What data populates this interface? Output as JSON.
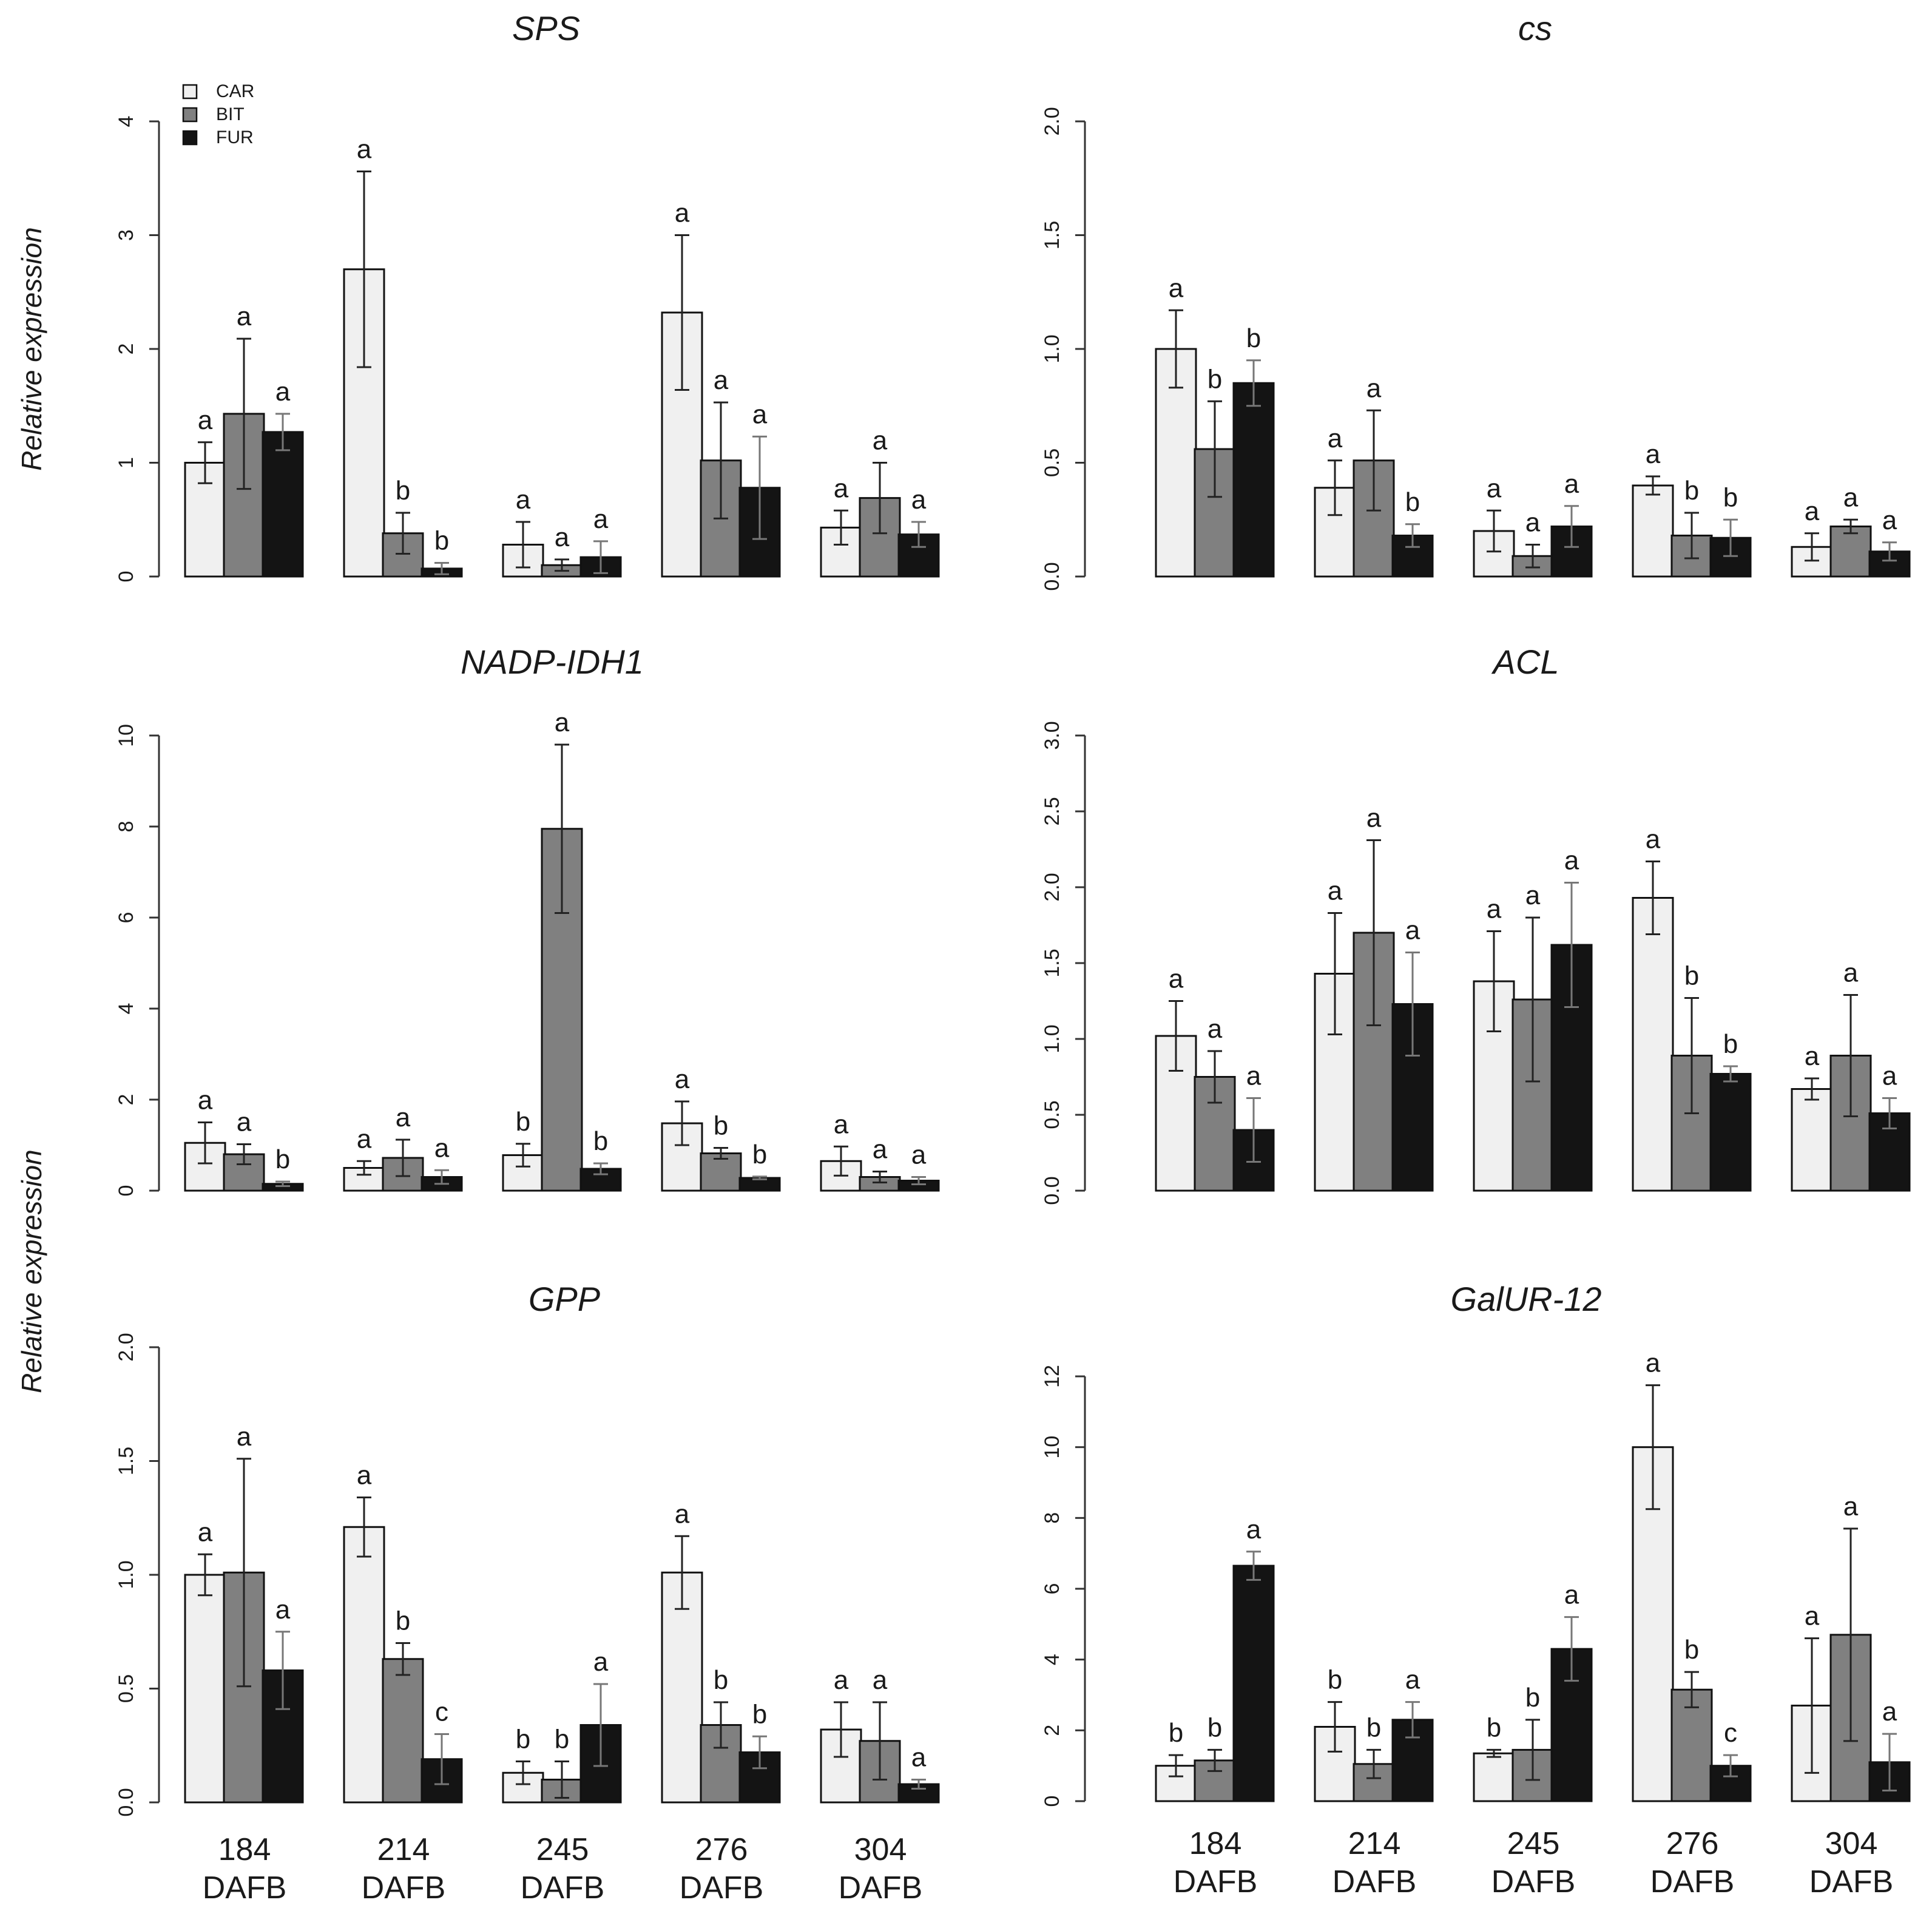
{
  "y_axis_label": "Relative expression",
  "legend": [
    {
      "label": "CAR",
      "color": "#f0f0f0"
    },
    {
      "label": "BIT",
      "color": "#808080"
    },
    {
      "label": "FUR",
      "color": "#141414"
    }
  ],
  "x_categories": [
    {
      "num": "184",
      "unit": "DAFB"
    },
    {
      "num": "214",
      "unit": "DAFB"
    },
    {
      "num": "245",
      "unit": "DAFB"
    },
    {
      "num": "276",
      "unit": "DAFB"
    },
    {
      "num": "304",
      "unit": "DAFB"
    }
  ],
  "chart_data": [
    {
      "type": "bar",
      "title": "SPS",
      "ylim": [
        0,
        4
      ],
      "yticks": [
        "0",
        "1",
        "2",
        "3",
        "4"
      ],
      "categories": [
        "184",
        "214",
        "245",
        "276",
        "304"
      ],
      "series": [
        {
          "name": "CAR",
          "values": [
            1.0,
            2.7,
            0.28,
            2.32,
            0.43
          ],
          "err": [
            0.18,
            0.86,
            0.2,
            0.68,
            0.15
          ],
          "sig": [
            "a",
            "a",
            "a",
            "a",
            "a"
          ]
        },
        {
          "name": "BIT",
          "values": [
            1.43,
            0.38,
            0.1,
            1.02,
            0.69
          ],
          "err": [
            0.66,
            0.18,
            0.05,
            0.51,
            0.31
          ],
          "sig": [
            "a",
            "b",
            "a",
            "a",
            "a"
          ]
        },
        {
          "name": "FUR",
          "values": [
            1.27,
            0.07,
            0.17,
            0.78,
            0.37
          ],
          "err": [
            0.16,
            0.05,
            0.14,
            0.45,
            0.11
          ],
          "sig": [
            "a",
            "b",
            "a",
            "a",
            "a"
          ]
        }
      ]
    },
    {
      "type": "bar",
      "title": "cs",
      "ylim": [
        0,
        2
      ],
      "yticks": [
        "0.0",
        "0.5",
        "1.0",
        "1.5",
        "2.0"
      ],
      "categories": [
        "184",
        "214",
        "245",
        "276",
        "304"
      ],
      "series": [
        {
          "name": "CAR",
          "values": [
            1.0,
            0.39,
            0.2,
            0.4,
            0.13
          ],
          "err": [
            0.17,
            0.12,
            0.09,
            0.04,
            0.06
          ],
          "sig": [
            "a",
            "a",
            "a",
            "a",
            "a"
          ]
        },
        {
          "name": "BIT",
          "values": [
            0.56,
            0.51,
            0.09,
            0.18,
            0.22
          ],
          "err": [
            0.21,
            0.22,
            0.05,
            0.1,
            0.03
          ],
          "sig": [
            "b",
            "a",
            "a",
            "b",
            "a"
          ]
        },
        {
          "name": "FUR",
          "values": [
            0.85,
            0.18,
            0.22,
            0.17,
            0.11
          ],
          "err": [
            0.1,
            0.05,
            0.09,
            0.08,
            0.04
          ],
          "sig": [
            "b",
            "b",
            "a",
            "b",
            "a"
          ]
        }
      ]
    },
    {
      "type": "bar",
      "title": "NADP-IDH1",
      "ylim": [
        0,
        10
      ],
      "yticks": [
        "0",
        "2",
        "4",
        "6",
        "8",
        "10"
      ],
      "categories": [
        "184",
        "214",
        "245",
        "276",
        "304"
      ],
      "series": [
        {
          "name": "CAR",
          "values": [
            1.05,
            0.5,
            0.78,
            1.48,
            0.65
          ],
          "err": [
            0.45,
            0.15,
            0.25,
            0.48,
            0.32
          ],
          "sig": [
            "a",
            "a",
            "b",
            "a",
            "a"
          ]
        },
        {
          "name": "BIT",
          "values": [
            0.8,
            0.72,
            7.95,
            0.82,
            0.3
          ],
          "err": [
            0.22,
            0.4,
            1.85,
            0.12,
            0.12
          ],
          "sig": [
            "a",
            "a",
            "a",
            "b",
            "a"
          ]
        },
        {
          "name": "FUR",
          "values": [
            0.15,
            0.3,
            0.48,
            0.28,
            0.22
          ],
          "err": [
            0.05,
            0.15,
            0.12,
            0.03,
            0.08
          ],
          "sig": [
            "b",
            "a",
            "b",
            "b",
            "a"
          ]
        }
      ]
    },
    {
      "type": "bar",
      "title": "ACL",
      "ylim": [
        0,
        3
      ],
      "yticks": [
        "0.0",
        "0.5",
        "1.0",
        "1.5",
        "2.0",
        "2.5",
        "3.0"
      ],
      "categories": [
        "184",
        "214",
        "245",
        "276",
        "304"
      ],
      "series": [
        {
          "name": "CAR",
          "values": [
            1.02,
            1.43,
            1.38,
            1.93,
            0.67
          ],
          "err": [
            0.23,
            0.4,
            0.33,
            0.24,
            0.07
          ],
          "sig": [
            "a",
            "a",
            "a",
            "a",
            "a"
          ]
        },
        {
          "name": "BIT",
          "values": [
            0.75,
            1.7,
            1.26,
            0.89,
            0.89
          ],
          "err": [
            0.17,
            0.61,
            0.54,
            0.38,
            0.4
          ],
          "sig": [
            "a",
            "a",
            "a",
            "b",
            "a"
          ]
        },
        {
          "name": "FUR",
          "values": [
            0.4,
            1.23,
            1.62,
            0.77,
            0.51
          ],
          "err": [
            0.21,
            0.34,
            0.41,
            0.05,
            0.1
          ],
          "sig": [
            "a",
            "a",
            "a",
            "b",
            "a"
          ]
        }
      ]
    },
    {
      "type": "bar",
      "title": "GPP",
      "ylim": [
        0,
        2
      ],
      "yticks": [
        "0.0",
        "0.5",
        "1.0",
        "1.5",
        "2.0"
      ],
      "categories": [
        "184",
        "214",
        "245",
        "276",
        "304"
      ],
      "series": [
        {
          "name": "CAR",
          "values": [
            1.0,
            1.21,
            0.13,
            1.01,
            0.32
          ],
          "err": [
            0.09,
            0.13,
            0.05,
            0.16,
            0.12
          ],
          "sig": [
            "a",
            "a",
            "b",
            "a",
            "a"
          ]
        },
        {
          "name": "BIT",
          "values": [
            1.01,
            0.63,
            0.1,
            0.34,
            0.27
          ],
          "err": [
            0.5,
            0.07,
            0.08,
            0.1,
            0.17
          ],
          "sig": [
            "a",
            "b",
            "b",
            "b",
            "a"
          ]
        },
        {
          "name": "FUR",
          "values": [
            0.58,
            0.19,
            0.34,
            0.22,
            0.08
          ],
          "err": [
            0.17,
            0.11,
            0.18,
            0.07,
            0.02
          ],
          "sig": [
            "a",
            "c",
            "a",
            "b",
            "a"
          ]
        }
      ]
    },
    {
      "type": "bar",
      "title": "GalUR-12",
      "ylim": [
        0,
        12
      ],
      "yticks": [
        "0",
        "2",
        "4",
        "6",
        "8",
        "10",
        "12"
      ],
      "categories": [
        "184",
        "214",
        "245",
        "276",
        "304"
      ],
      "series": [
        {
          "name": "CAR",
          "values": [
            1.0,
            2.1,
            1.35,
            10.0,
            2.7
          ],
          "err": [
            0.3,
            0.7,
            0.1,
            1.75,
            1.9
          ],
          "sig": [
            "b",
            "b",
            "b",
            "a",
            "a"
          ]
        },
        {
          "name": "BIT",
          "values": [
            1.15,
            1.05,
            1.45,
            3.15,
            4.7
          ],
          "err": [
            0.3,
            0.4,
            0.85,
            0.5,
            3.0
          ],
          "sig": [
            "b",
            "b",
            "b",
            "b",
            "a"
          ]
        },
        {
          "name": "FUR",
          "values": [
            6.65,
            2.3,
            4.3,
            1.0,
            1.1
          ],
          "err": [
            0.4,
            0.5,
            0.9,
            0.3,
            0.8
          ],
          "sig": [
            "a",
            "a",
            "a",
            "c",
            "a"
          ]
        }
      ]
    }
  ]
}
